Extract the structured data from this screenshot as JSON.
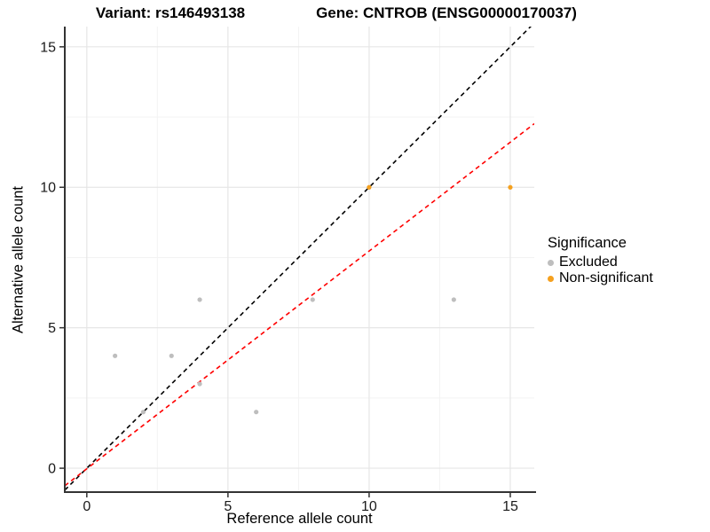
{
  "title": {
    "variant": "Variant: rs146493138",
    "gene": "Gene: CNTROB (ENSG00000170037)"
  },
  "axes": {
    "x": {
      "label": "Reference allele count"
    },
    "y": {
      "label": "Alternative allele count"
    }
  },
  "legend": {
    "title": "Significance",
    "items": [
      {
        "label": "Excluded",
        "color": "#BEBEBE"
      },
      {
        "label": "Non-significant",
        "color": "#F5A01E"
      }
    ]
  },
  "colors": {
    "grid_major": "#E6E6E6",
    "grid_minor": "#F3F3F3",
    "axis_line": "#333333",
    "tick_mark": "#333333"
  },
  "chart_data": {
    "type": "scatter",
    "title": "Variant: rs146493138   Gene: CNTROB (ENSG00000170037)",
    "xlabel": "Reference allele count",
    "ylabel": "Alternative allele count",
    "xlim": [
      -0.78,
      15.85
    ],
    "ylim": [
      -0.85,
      15.72
    ],
    "x_ticks": [
      0,
      5,
      10,
      15
    ],
    "y_ticks": [
      0,
      5,
      10,
      15
    ],
    "x_minor": [
      2.5,
      7.5,
      12.5
    ],
    "y_minor": [
      2.5,
      7.5,
      12.5
    ],
    "grid": true,
    "legend_title": "Significance",
    "legend_position": "right",
    "series": [
      {
        "name": "Excluded",
        "color": "#BEBEBE",
        "points": [
          [
            1,
            4
          ],
          [
            2,
            2
          ],
          [
            3,
            4
          ],
          [
            4,
            3
          ],
          [
            4,
            6
          ],
          [
            6,
            2
          ],
          [
            8,
            6
          ],
          [
            13,
            6
          ]
        ]
      },
      {
        "name": "Non-significant",
        "color": "#F5A01E",
        "points": [
          [
            10,
            10
          ],
          [
            15,
            10
          ]
        ]
      }
    ],
    "ablines": [
      {
        "name": "identity-line",
        "slope": 1,
        "intercept": 0,
        "color": "#000000",
        "style": "dashed"
      },
      {
        "name": "regression-line",
        "slope": 0.775,
        "intercept": -0.02,
        "color": "#FF0000",
        "style": "dashed"
      }
    ]
  }
}
